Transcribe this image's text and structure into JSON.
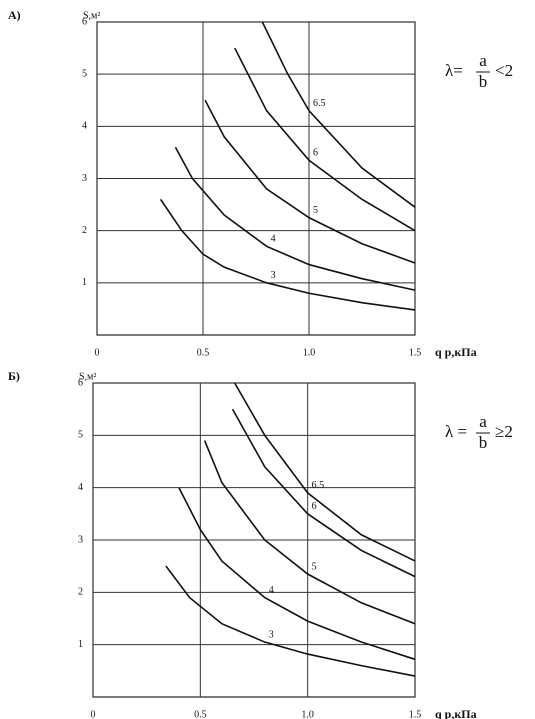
{
  "chart_data": [
    {
      "type": "line",
      "panel_label": "А)",
      "ylabel": "S,м²",
      "xlabel": "q р,кПа",
      "formula": {
        "lhs": "λ=",
        "num": "a",
        "den": "b",
        "rel": "<2"
      },
      "xlim": [
        0,
        1.5
      ],
      "ylim": [
        0,
        6
      ],
      "xticks": [
        0,
        0.5,
        {
          "value": 1,
          "label": "1.0"
        },
        1.5
      ],
      "yticks": [
        1,
        2,
        3,
        4,
        5,
        6
      ],
      "grid": true,
      "series": [
        {
          "name": "3",
          "color": "#111111",
          "x": [
            0.3,
            0.4,
            0.5,
            0.6,
            0.8,
            1.0,
            1.25,
            1.5
          ],
          "values": [
            2.6,
            2.0,
            1.55,
            1.3,
            1.0,
            0.8,
            0.62,
            0.48
          ]
        },
        {
          "name": "4",
          "color": "#111111",
          "x": [
            0.37,
            0.45,
            0.6,
            0.8,
            1.0,
            1.25,
            1.5
          ],
          "values": [
            3.6,
            3.0,
            2.3,
            1.7,
            1.35,
            1.08,
            0.86
          ]
        },
        {
          "name": "5",
          "color": "#111111",
          "x": [
            0.51,
            0.6,
            0.8,
            1.0,
            1.25,
            1.5
          ],
          "values": [
            4.5,
            3.8,
            2.8,
            2.25,
            1.75,
            1.38
          ]
        },
        {
          "name": "6",
          "color": "#111111",
          "x": [
            0.65,
            0.8,
            1.0,
            1.25,
            1.5
          ],
          "values": [
            5.5,
            4.3,
            3.35,
            2.6,
            2.0
          ]
        },
        {
          "name": "6.5",
          "color": "#111111",
          "x": [
            0.78,
            0.9,
            1.0,
            1.25,
            1.5
          ],
          "values": [
            6,
            5.0,
            4.3,
            3.2,
            2.45
          ]
        }
      ]
    },
    {
      "type": "line",
      "panel_label": "Б)",
      "ylabel": "S,м²",
      "xlabel": "q р,кПа",
      "formula": {
        "lhs": "λ =",
        "num": "a",
        "den": "b",
        "rel": "≥2"
      },
      "xlim": [
        0,
        1.5
      ],
      "ylim": [
        0,
        6
      ],
      "xticks": [
        0,
        0.5,
        {
          "value": 1,
          "label": "1.0"
        },
        1.5
      ],
      "yticks": [
        1,
        2,
        3,
        4,
        5,
        6
      ],
      "grid": true,
      "series": [
        {
          "name": "3",
          "color": "#111111",
          "x": [
            0.34,
            0.45,
            0.6,
            0.8,
            1.0,
            1.25,
            1.5
          ],
          "values": [
            2.5,
            1.9,
            1.4,
            1.05,
            0.82,
            0.6,
            0.4
          ]
        },
        {
          "name": "4",
          "color": "#111111",
          "x": [
            0.4,
            0.5,
            0.6,
            0.8,
            1.0,
            1.25,
            1.5
          ],
          "values": [
            4.0,
            3.2,
            2.6,
            1.9,
            1.45,
            1.05,
            0.72
          ]
        },
        {
          "name": "5",
          "color": "#111111",
          "x": [
            0.52,
            0.6,
            0.8,
            1.0,
            1.25,
            1.5
          ],
          "values": [
            4.9,
            4.1,
            3.0,
            2.35,
            1.8,
            1.4
          ]
        },
        {
          "name": "6",
          "color": "#111111",
          "x": [
            0.65,
            0.8,
            1.0,
            1.25,
            1.5
          ],
          "values": [
            5.5,
            4.4,
            3.5,
            2.8,
            2.3
          ]
        },
        {
          "name": "6.5",
          "color": "#111111",
          "x": [
            0.66,
            0.8,
            1.0,
            1.25,
            1.5
          ],
          "values": [
            6,
            5.0,
            3.9,
            3.1,
            2.6
          ]
        }
      ]
    }
  ]
}
